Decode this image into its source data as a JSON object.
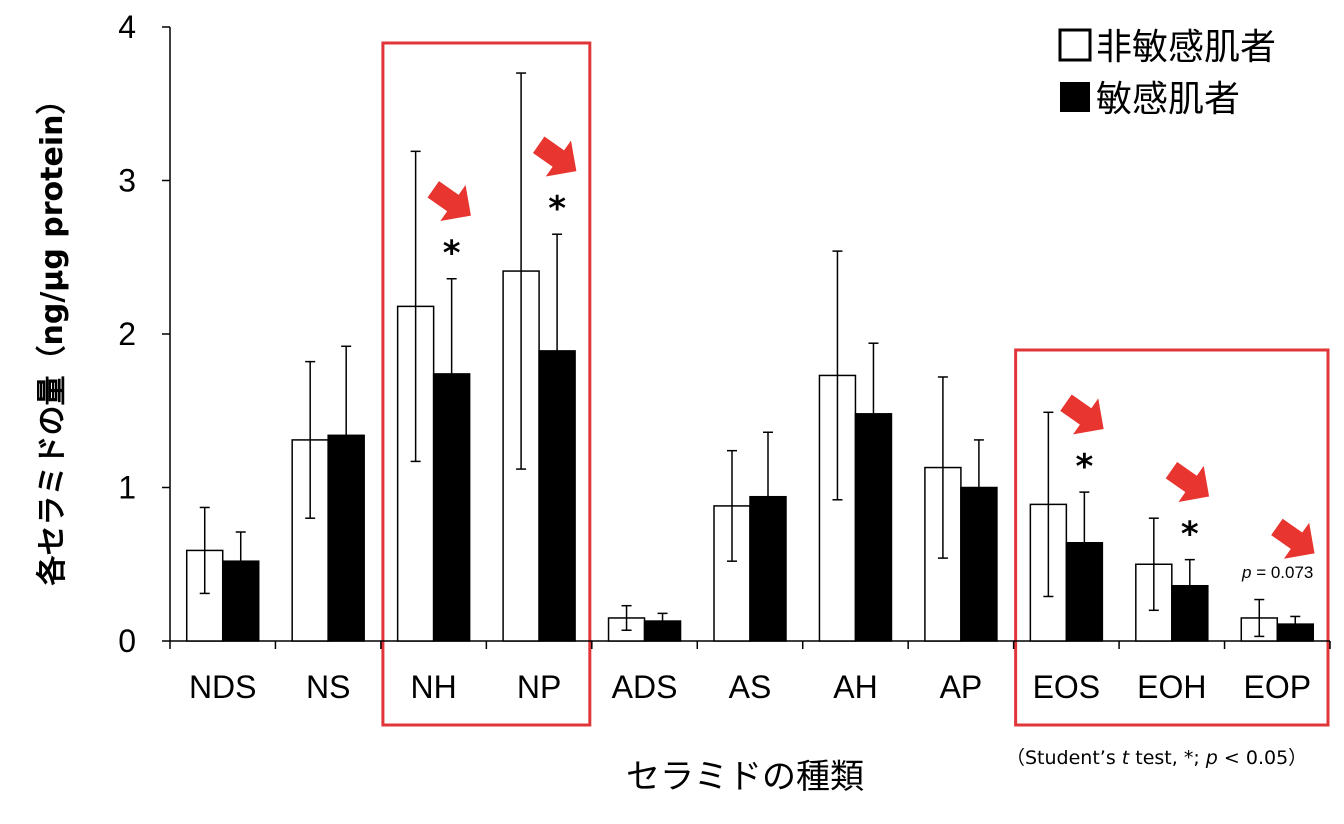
{
  "chart_data": {
    "type": "bar",
    "ylabel": "各セラミドの量（ng/μg protein）",
    "xlabel": "セラミドの種類",
    "ylim": [
      0,
      4
    ],
    "yticks": [
      "0",
      "1",
      "2",
      "3",
      "4"
    ],
    "categories": [
      "NDS",
      "NS",
      "NH",
      "NP",
      "ADS",
      "AS",
      "AH",
      "AP",
      "EOS",
      "EOH",
      "EOP"
    ],
    "series": [
      {
        "name": "非敏感肌者",
        "fill": "#ffffff",
        "values": [
          0.59,
          1.31,
          2.18,
          2.41,
          0.15,
          0.88,
          1.73,
          1.13,
          0.89,
          0.5,
          0.15
        ],
        "errors": [
          0.28,
          0.51,
          1.01,
          1.29,
          0.08,
          0.36,
          0.81,
          0.59,
          0.6,
          0.3,
          0.12
        ]
      },
      {
        "name": "敏感肌者",
        "fill": "#000000",
        "values": [
          0.52,
          1.34,
          1.74,
          1.89,
          0.13,
          0.94,
          1.48,
          1.0,
          0.64,
          0.36,
          0.11
        ],
        "errors": [
          0.19,
          0.58,
          0.62,
          0.76,
          0.05,
          0.42,
          0.46,
          0.31,
          0.33,
          0.17,
          0.05
        ]
      }
    ],
    "grid": false,
    "legend_position": "top-right",
    "significance": [
      {
        "category": "NH",
        "label": "*"
      },
      {
        "category": "NP",
        "label": "*"
      },
      {
        "category": "EOS",
        "label": "*"
      },
      {
        "category": "EOH",
        "label": "*"
      }
    ],
    "trend": {
      "category": "EOP",
      "label": "p = 0.073"
    },
    "highlight_groups": [
      [
        "NH",
        "NP"
      ],
      [
        "EOS",
        "EOH",
        "EOP"
      ]
    ],
    "arrows_on": [
      "NH",
      "NP",
      "EOS",
      "EOH",
      "EOP"
    ],
    "note": "（Student’s t test, *; p < 0.05）",
    "colors": {
      "highlight": "#e0363a",
      "arrow": "#e8352f",
      "bar_outline": "#000000"
    }
  }
}
